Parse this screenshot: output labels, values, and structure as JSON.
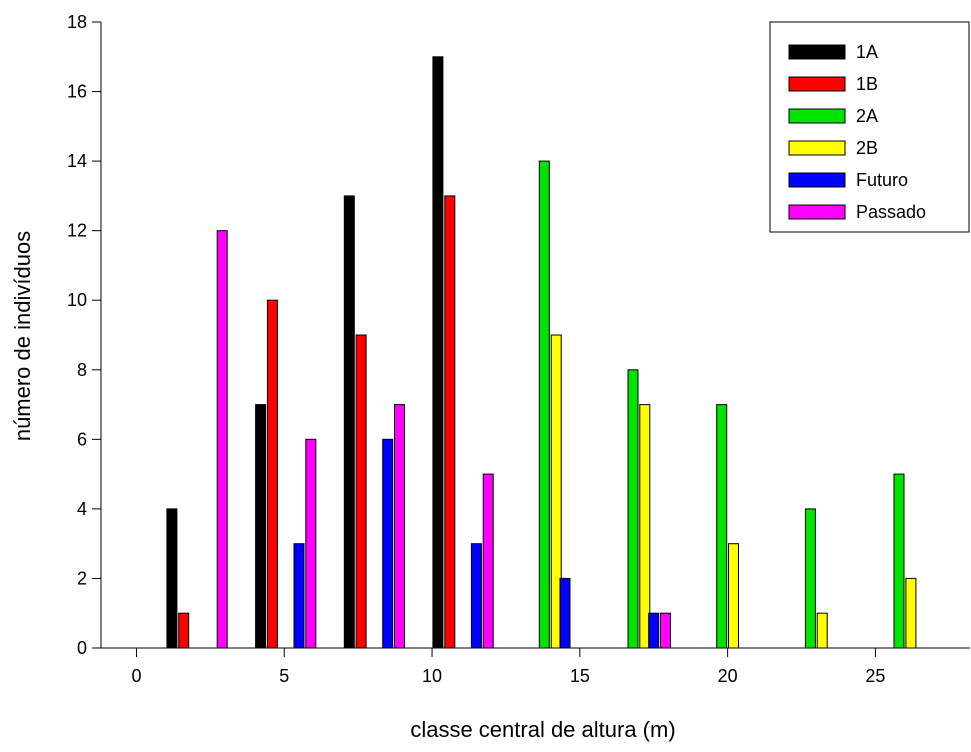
{
  "chart_data": {
    "type": "bar",
    "title": "",
    "xlabel": "classe central de altura (m)",
    "ylabel": "número de indivíduos",
    "xlim": [
      -1.2,
      28.2
    ],
    "ylim": [
      0,
      18
    ],
    "xticks": [
      0,
      5,
      10,
      15,
      20,
      25
    ],
    "yticks": [
      0,
      2,
      4,
      6,
      8,
      10,
      12,
      14,
      16,
      18
    ],
    "grid": false,
    "legend_position": "top-right",
    "bar_width": 0.34,
    "series": [
      {
        "name": "1A",
        "color": "#000000",
        "points": [
          {
            "x": 1.2,
            "y": 4
          },
          {
            "x": 4.2,
            "y": 7
          },
          {
            "x": 7.2,
            "y": 13
          },
          {
            "x": 10.2,
            "y": 17
          }
        ]
      },
      {
        "name": "1B",
        "color": "#ff0000",
        "points": [
          {
            "x": 1.6,
            "y": 1
          },
          {
            "x": 4.6,
            "y": 10
          },
          {
            "x": 7.6,
            "y": 9
          },
          {
            "x": 10.6,
            "y": 13
          }
        ]
      },
      {
        "name": "2A",
        "color": "#00e400",
        "points": [
          {
            "x": 13.8,
            "y": 14
          },
          {
            "x": 16.8,
            "y": 8
          },
          {
            "x": 19.8,
            "y": 7
          },
          {
            "x": 22.8,
            "y": 4
          },
          {
            "x": 25.8,
            "y": 5
          }
        ]
      },
      {
        "name": "2B",
        "color": "#ffff00",
        "points": [
          {
            "x": 14.2,
            "y": 9
          },
          {
            "x": 17.2,
            "y": 7
          },
          {
            "x": 20.2,
            "y": 3
          },
          {
            "x": 23.2,
            "y": 1
          },
          {
            "x": 26.2,
            "y": 2
          }
        ]
      },
      {
        "name": "Futuro",
        "color": "#0000ff",
        "points": [
          {
            "x": 5.5,
            "y": 3
          },
          {
            "x": 8.5,
            "y": 6
          },
          {
            "x": 11.5,
            "y": 3
          },
          {
            "x": 14.5,
            "y": 2
          },
          {
            "x": 17.5,
            "y": 1
          }
        ]
      },
      {
        "name": "Passado",
        "color": "#ff00ff",
        "points": [
          {
            "x": 2.9,
            "y": 12
          },
          {
            "x": 5.9,
            "y": 6
          },
          {
            "x": 8.9,
            "y": 7
          },
          {
            "x": 11.9,
            "y": 5
          },
          {
            "x": 17.9,
            "y": 1
          }
        ]
      }
    ]
  }
}
